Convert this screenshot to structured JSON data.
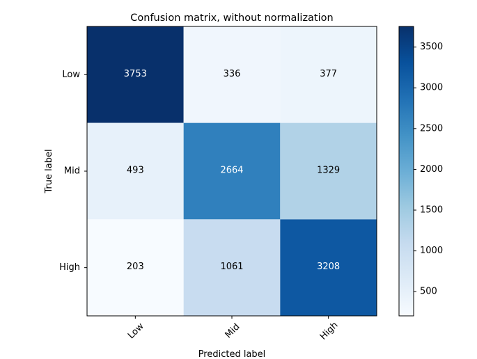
{
  "chart_data": {
    "type": "heatmap",
    "title": "Confusion matrix, without normalization",
    "xlabel": "Predicted label",
    "ylabel": "True label",
    "x_categories": [
      "Low",
      "Mid",
      "High"
    ],
    "y_categories": [
      "Low",
      "Mid",
      "High"
    ],
    "values": [
      [
        3753,
        336,
        377
      ],
      [
        493,
        2664,
        1329
      ],
      [
        203,
        1061,
        3208
      ]
    ],
    "value_range": [
      203,
      3753
    ],
    "colormap": "Blues",
    "colorbar": {
      "ticks": [
        500,
        1000,
        1500,
        2000,
        2500,
        3000,
        3500
      ],
      "tick_labels": [
        "500",
        "1000",
        "1500",
        "2000",
        "2500",
        "3000",
        "3500"
      ]
    },
    "text_color_light": "#ffffff",
    "text_color_dark": "#000000",
    "threshold": 1876.5
  }
}
